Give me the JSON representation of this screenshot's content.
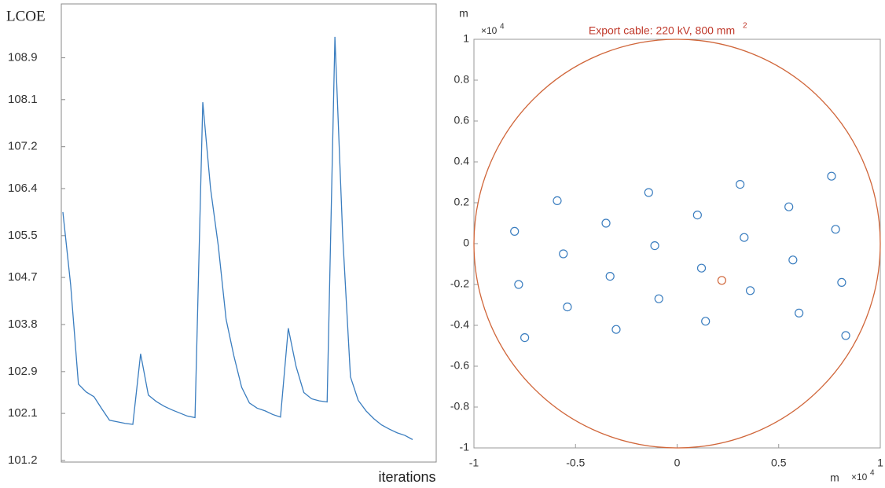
{
  "chart_data": [
    {
      "type": "line",
      "y_label": "LCOE",
      "x_label": "iterations",
      "color": "#3a7dbf",
      "values": [
        105.95,
        104.56,
        102.66,
        102.51,
        102.42,
        102.19,
        101.97,
        101.94,
        101.91,
        101.89,
        103.24,
        102.45,
        102.33,
        102.24,
        102.17,
        102.11,
        102.05,
        102.02,
        108.05,
        106.4,
        105.3,
        103.9,
        103.2,
        102.6,
        102.3,
        102.2,
        102.15,
        102.08,
        102.03,
        103.73,
        103.0,
        102.5,
        102.38,
        102.34,
        102.32,
        109.3,
        105.5,
        102.8,
        102.35,
        102.15,
        102.0,
        101.88,
        101.8,
        101.73,
        101.68,
        101.6
      ],
      "ylim": [
        101.2,
        109.9
      ],
      "yticks": [
        101.2,
        102.1,
        102.9,
        103.8,
        104.7,
        105.5,
        106.4,
        107.2,
        108.1,
        108.9
      ]
    },
    {
      "type": "scatter",
      "title": "Export cable: 220 kV, 800 mm",
      "title_superscript": "2",
      "x_label": "m",
      "y_label": "m",
      "scale_base": "×10",
      "scale_exponent": "4",
      "boundary": {
        "center": [
          0,
          0
        ],
        "radius": 1,
        "color": "#d0663a"
      },
      "series": [
        {
          "color": "#3a7dbf",
          "x": [
            -0.59,
            -0.8,
            -0.78,
            -0.75,
            -0.56,
            -0.54,
            -0.35,
            -0.33,
            -0.3,
            -0.14,
            -0.11,
            -0.09,
            0.1,
            0.12,
            0.14,
            0.31,
            0.33,
            0.36,
            0.55,
            0.57,
            0.6,
            0.76,
            0.78,
            0.81,
            0.83
          ],
          "values": [
            0.21,
            0.06,
            -0.2,
            -0.46,
            -0.05,
            -0.31,
            0.1,
            -0.16,
            -0.42,
            0.25,
            -0.01,
            -0.27,
            0.14,
            -0.12,
            -0.38,
            0.29,
            0.03,
            -0.23,
            0.18,
            -0.08,
            -0.34,
            0.33,
            0.07,
            -0.19,
            -0.45
          ]
        },
        {
          "color": "#d0663a",
          "x": [
            0.22
          ],
          "values": [
            -0.18
          ]
        }
      ],
      "xlim": [
        -1,
        1
      ],
      "ylim": [
        -1,
        1
      ],
      "xticks": [
        -1,
        -0.5,
        0,
        0.5,
        1
      ],
      "yticks": [
        -1,
        -0.8,
        -0.6,
        -0.4,
        -0.2,
        0,
        0.2,
        0.4,
        0.6,
        0.8,
        1
      ]
    }
  ]
}
